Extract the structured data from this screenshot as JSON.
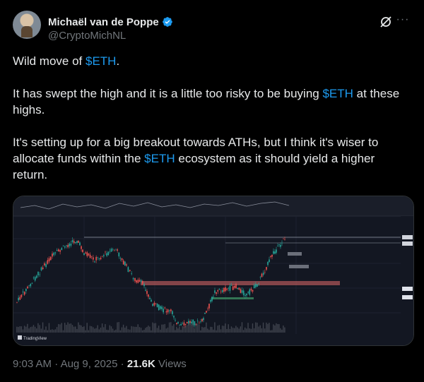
{
  "author": {
    "display_name": "Michaël van de Poppe",
    "handle": "@CryptoMichNL",
    "verified": true,
    "avatar_icon": "profile-photo"
  },
  "actions": {
    "grok_icon": "grok-icon",
    "more_icon": "more-icon",
    "more_glyph": "···"
  },
  "tweet": {
    "p1_before": "Wild move of ",
    "p1_tag": "$ETH",
    "p1_after": ".",
    "p2_before": "It has swept the high and it is a little too risky to be buying ",
    "p2_tag": "$ETH",
    "p2_after": " at these highs.",
    "p3_before": "It's setting up for a big breakout towards ATHs, but I think it's wiser to allocate funds within the ",
    "p3_tag": "$ETH",
    "p3_after": " ecosystem as it should yield a higher return."
  },
  "media": {
    "type": "price-chart-screenshot",
    "watermark": "TradingView",
    "colors": {
      "up": "#26a69a",
      "down": "#ef5350",
      "bg": "#131722",
      "resistance_zone": "#b4585a"
    }
  },
  "meta": {
    "time": "9:03 AM",
    "date": "Aug 9, 2025",
    "sep": " · ",
    "views_count": "21.6K",
    "views_label": "Views"
  },
  "colors": {
    "accent": "#1d9bf0",
    "text": "#e7e9ea",
    "muted": "#71767b",
    "background": "#000000"
  }
}
